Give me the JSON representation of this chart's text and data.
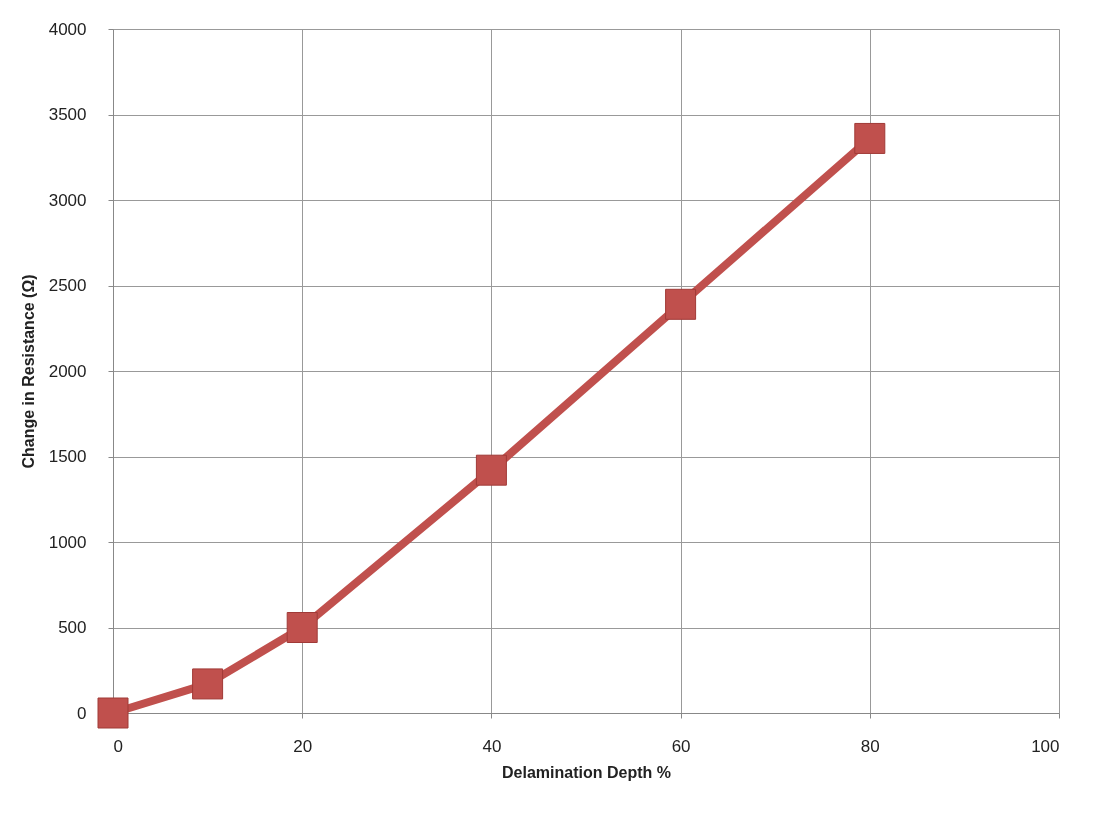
{
  "chart_data": {
    "type": "line",
    "xlabel": "Delamination Depth  %",
    "ylabel": "Change in Resistance (Ω)",
    "x": [
      0,
      10,
      20,
      40,
      60,
      80
    ],
    "series": [
      {
        "color": "#c0504d",
        "values": [
          0,
          170,
          500,
          1420,
          2390,
          3360
        ]
      }
    ],
    "xlim": [
      0,
      100
    ],
    "xticks": [
      0,
      20,
      40,
      60,
      80,
      100
    ],
    "ylim": [
      0,
      4000
    ],
    "yticks": [
      0,
      500,
      1000,
      1500,
      2000,
      2500,
      3000,
      3500,
      4000
    ],
    "grid": true,
    "marker": "square",
    "line_style": "solid"
  }
}
